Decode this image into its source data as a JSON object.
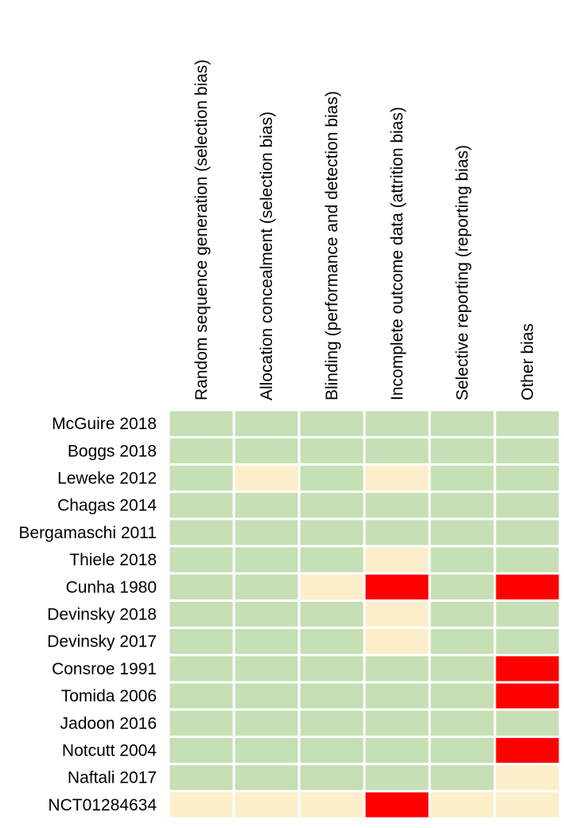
{
  "chart_data": {
    "type": "heatmap",
    "columns": [
      "Random sequence generation (selection bias)",
      "Allocation concealment (selection bias)",
      "Blinding (performance and detection bias)",
      "Incomplete outcome data (attrition bias)",
      "Selective reporting (reporting bias)",
      "Other bias"
    ],
    "rows": [
      {
        "study": "McGuire 2018",
        "ratings": [
          "low",
          "low",
          "low",
          "low",
          "low",
          "low"
        ]
      },
      {
        "study": "Boggs 2018",
        "ratings": [
          "low",
          "low",
          "low",
          "low",
          "low",
          "low"
        ]
      },
      {
        "study": "Leweke 2012",
        "ratings": [
          "low",
          "unclear",
          "low",
          "unclear",
          "low",
          "low"
        ]
      },
      {
        "study": "Chagas 2014",
        "ratings": [
          "low",
          "low",
          "low",
          "low",
          "low",
          "low"
        ]
      },
      {
        "study": "Bergamaschi 2011",
        "ratings": [
          "low",
          "low",
          "low",
          "low",
          "low",
          "low"
        ]
      },
      {
        "study": "Thiele 2018",
        "ratings": [
          "low",
          "low",
          "low",
          "unclear",
          "low",
          "low"
        ]
      },
      {
        "study": "Cunha 1980",
        "ratings": [
          "low",
          "low",
          "unclear",
          "high",
          "low",
          "high"
        ]
      },
      {
        "study": "Devinsky 2018",
        "ratings": [
          "low",
          "low",
          "low",
          "unclear",
          "low",
          "low"
        ]
      },
      {
        "study": "Devinsky 2017",
        "ratings": [
          "low",
          "low",
          "low",
          "unclear",
          "low",
          "low"
        ]
      },
      {
        "study": "Consroe 1991",
        "ratings": [
          "low",
          "low",
          "low",
          "low",
          "low",
          "high"
        ]
      },
      {
        "study": "Tomida 2006",
        "ratings": [
          "low",
          "low",
          "low",
          "low",
          "low",
          "high"
        ]
      },
      {
        "study": "Jadoon 2016",
        "ratings": [
          "low",
          "low",
          "low",
          "low",
          "low",
          "low"
        ]
      },
      {
        "study": "Notcutt 2004",
        "ratings": [
          "low",
          "low",
          "low",
          "low",
          "low",
          "high"
        ]
      },
      {
        "study": "Naftali 2017",
        "ratings": [
          "low",
          "low",
          "low",
          "low",
          "low",
          "unclear"
        ]
      },
      {
        "study": "NCT01284634",
        "ratings": [
          "unclear",
          "unclear",
          "unclear",
          "high",
          "unclear",
          "unclear"
        ]
      }
    ],
    "colors": {
      "low": "#c6dfb5",
      "unclear": "#fdeecb",
      "high": "#ff0000",
      "grid": "#ffffff"
    }
  }
}
